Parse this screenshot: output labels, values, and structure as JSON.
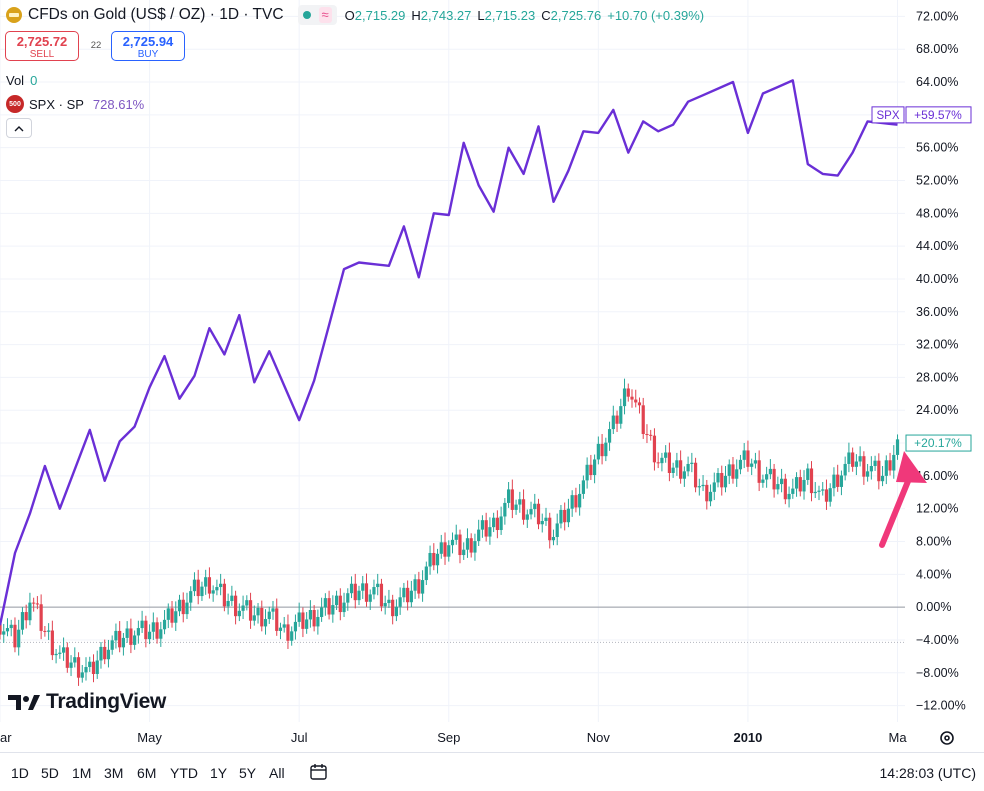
{
  "header": {
    "title": "CFDs on Gold (US$ / OZ) · 1D · TVC",
    "ohlc": [
      {
        "k": "O",
        "v": "2,715.29"
      },
      {
        "k": "H",
        "v": "2,743.27"
      },
      {
        "k": "L",
        "v": "2,715.23"
      },
      {
        "k": "C",
        "v": "2,725.76"
      }
    ],
    "change": "+10.70 (+0.39%)"
  },
  "trade": {
    "sell_price": "2,725.72",
    "sell_label": "SELL",
    "spread": "22",
    "buy_price": "2,725.94",
    "buy_label": "BUY"
  },
  "legend": {
    "vol_label": "Vol",
    "vol_value": "0",
    "spx_badge": "500",
    "spx_label": "SPX · SP",
    "spx_value": "728.61%"
  },
  "logo": {
    "text": "TradingView"
  },
  "toolbar": {
    "timeframes": [
      "1D",
      "5D",
      "1M",
      "3M",
      "6M",
      "YTD",
      "1Y",
      "5Y",
      "All"
    ],
    "clock": "14:28:03 (UTC)"
  },
  "colors": {
    "spx": "#6a2fd6",
    "up": "#26a69a",
    "down": "#e1424f",
    "arrow": "#f0387a",
    "grid": "#f0f3fa"
  },
  "chart_data": {
    "type": "line",
    "title": "CFDs on Gold (US$ / OZ) · 1D · TVC",
    "y_axis_labels": [
      "72.00%",
      "68.00%",
      "64.00%",
      "60.00%",
      "56.00%",
      "52.00%",
      "48.00%",
      "44.00%",
      "40.00%",
      "36.00%",
      "32.00%",
      "28.00%",
      "24.00%",
      "20.00%",
      "16.00%",
      "12.00%",
      "8.00%",
      "4.00%",
      "0.00%",
      "−4.00%",
      "−8.00%",
      "−12.00%"
    ],
    "y_values": [
      72,
      68,
      64,
      60,
      56,
      52,
      48,
      44,
      40,
      36,
      32,
      28,
      24,
      20,
      16,
      12,
      8,
      4,
      0,
      -4,
      -8,
      -12
    ],
    "ylim": [
      -14,
      74
    ],
    "x_ticks": [
      {
        "label": "ar",
        "x": 0.0
      },
      {
        "label": "May",
        "x": 2.0
      },
      {
        "label": "Jul",
        "x": 4.0
      },
      {
        "label": "Sep",
        "x": 6.0
      },
      {
        "label": "Nov",
        "x": 8.0
      },
      {
        "label": "2010",
        "x": 10.0,
        "bold": true
      },
      {
        "label": "Ma",
        "x": 12.0
      }
    ],
    "x_range": [
      0,
      12.1
    ],
    "reference_lines": [
      {
        "value": 0,
        "style": "solid"
      },
      {
        "value": -4.3,
        "style": "dotted"
      }
    ],
    "series": [
      {
        "name": "SPX",
        "last_label": "+59.57%",
        "tag": "SPX",
        "x": [
          0,
          0.2,
          0.4,
          0.6,
          0.8,
          1.0,
          1.2,
          1.4,
          1.6,
          1.8,
          2.0,
          2.2,
          2.4,
          2.6,
          2.8,
          3.0,
          3.2,
          3.4,
          3.6,
          3.8,
          4.0,
          4.2,
          4.4,
          4.6,
          4.8,
          5.0,
          5.2,
          5.4,
          5.6,
          5.8,
          6.0,
          6.2,
          6.4,
          6.6,
          6.8,
          7.0,
          7.2,
          7.4,
          7.6,
          7.8,
          8.0,
          8.2,
          8.4,
          8.6,
          8.8,
          9.0,
          9.2,
          9.4,
          9.6,
          9.8,
          10.0,
          10.2,
          10.4,
          10.6,
          10.8,
          11.0,
          11.2,
          11.4,
          11.6,
          11.8,
          12.0
        ],
        "values": [
          -1,
          6,
          12,
          16,
          12,
          18,
          21,
          16,
          19,
          22,
          28,
          30,
          26,
          27,
          34,
          32,
          35,
          28,
          30,
          27,
          24,
          27,
          35,
          40,
          42,
          43,
          41,
          47,
          39,
          48,
          49,
          56,
          52,
          47,
          56,
          54,
          58,
          50,
          52,
          58,
          59,
          60,
          56,
          58,
          58,
          60,
          61,
          63,
          62,
          64,
          59,
          62,
          64,
          63,
          54,
          54,
          52,
          56,
          58,
          59,
          60
        ]
      },
      {
        "name": "Gold",
        "type": "candlestick",
        "last_label": "+20.17%",
        "x": [
          0,
          0.2,
          0.4,
          0.6,
          0.8,
          1.0,
          1.2,
          1.4,
          1.6,
          1.8,
          2.0,
          2.2,
          2.4,
          2.6,
          2.8,
          3.0,
          3.2,
          3.4,
          3.6,
          3.8,
          4.0,
          4.2,
          4.4,
          4.6,
          4.8,
          5.0,
          5.2,
          5.4,
          5.6,
          5.8,
          6.0,
          6.2,
          6.4,
          6.6,
          6.8,
          7.0,
          7.2,
          7.4,
          7.6,
          7.8,
          8.0,
          8.2,
          8.4,
          8.6,
          8.8,
          9.0,
          9.2,
          9.4,
          9.6,
          9.8,
          10.0,
          10.2,
          10.4,
          10.6,
          10.8,
          11.0,
          11.2,
          11.4,
          11.6,
          11.8,
          12.0
        ],
        "values": [
          -2,
          -4,
          1,
          -3,
          -6,
          -7,
          -8,
          -5,
          -4,
          -3,
          -3,
          -2,
          0,
          2,
          3,
          1,
          0,
          -1,
          -1,
          -3,
          -2,
          -1,
          0,
          1,
          2,
          2,
          0,
          1,
          3,
          6,
          8,
          7,
          9,
          10,
          13,
          12,
          11,
          9,
          12,
          15,
          19,
          22,
          27,
          22,
          18,
          17,
          17,
          14,
          15,
          17,
          18,
          16,
          15,
          14,
          16,
          13,
          16,
          18,
          17,
          16,
          20
        ]
      }
    ],
    "annotations": [
      {
        "type": "arrow",
        "target": "+20.17%"
      }
    ]
  }
}
